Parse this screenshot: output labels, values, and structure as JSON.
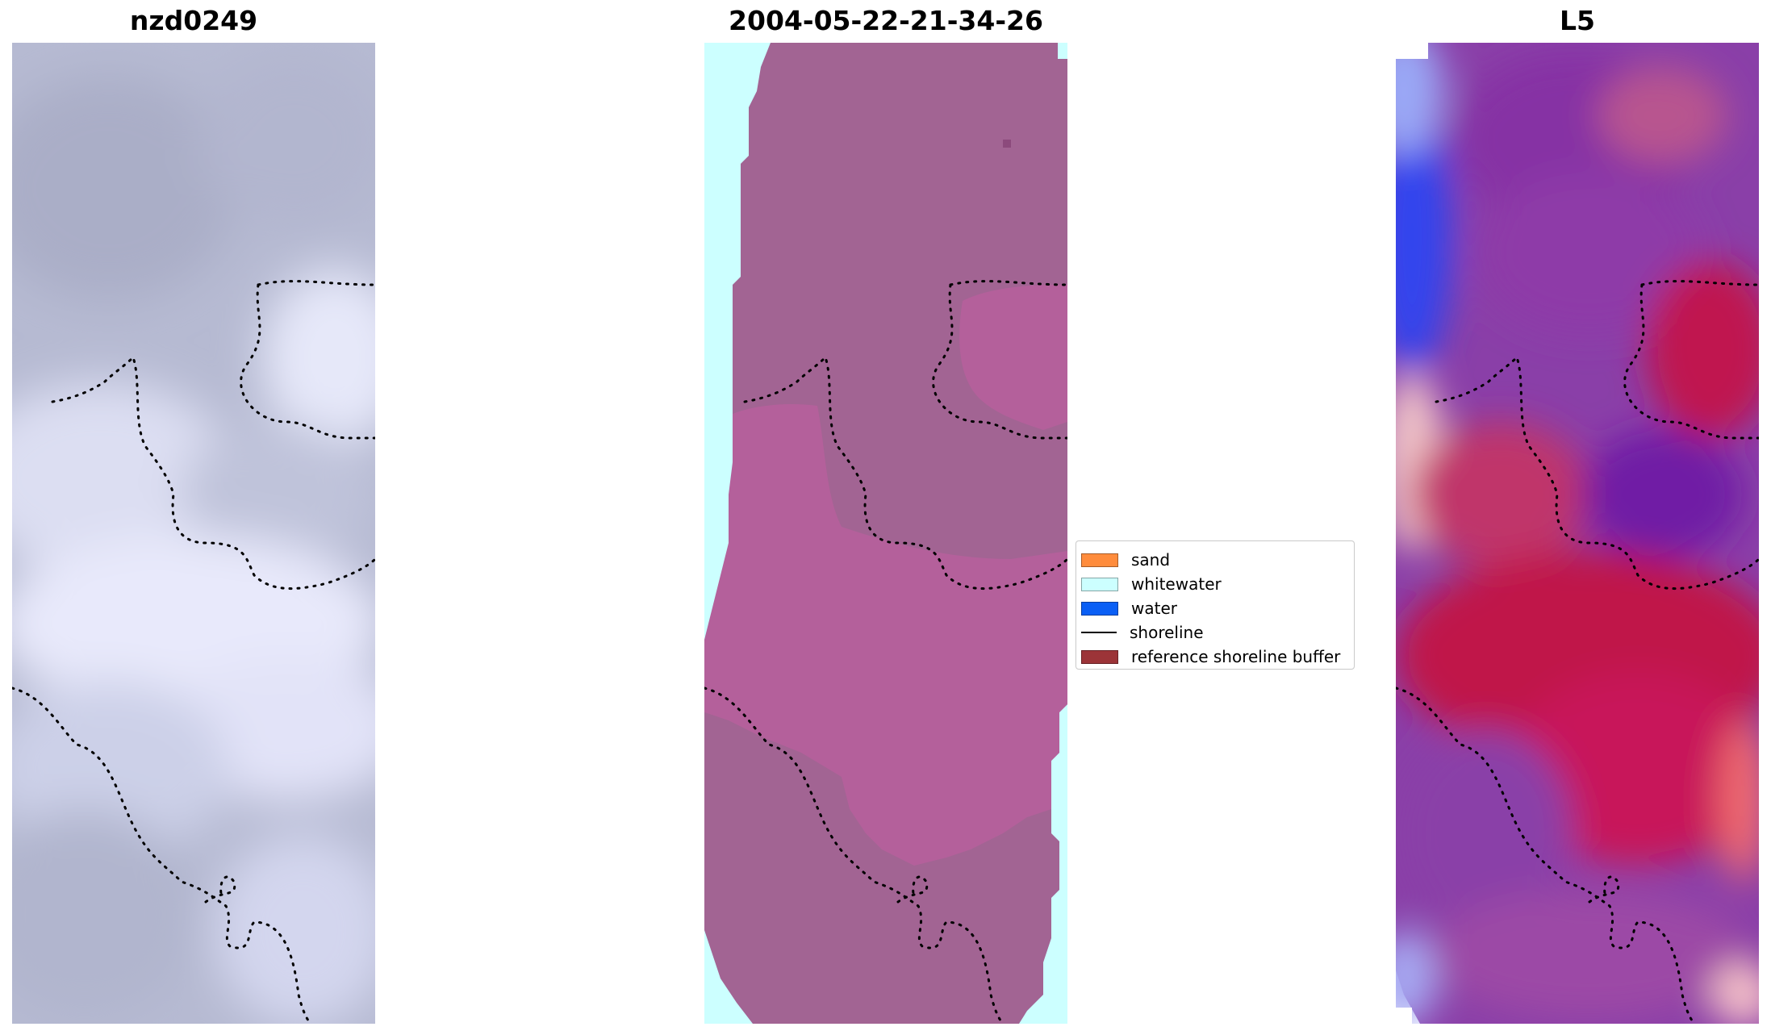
{
  "panels": [
    {
      "title": "nzd0249"
    },
    {
      "title": "2004-05-22-21-34-26"
    },
    {
      "title": "L5"
    }
  ],
  "legend": {
    "items": [
      {
        "label": "sand",
        "color": "#ff8c3c",
        "kind": "patch"
      },
      {
        "label": "whitewater",
        "color": "#ccffff",
        "kind": "patch"
      },
      {
        "label": "water",
        "color": "#0a5ff5",
        "kind": "patch"
      },
      {
        "label": "shoreline",
        "color": "#000000",
        "kind": "line"
      },
      {
        "label": "reference shoreline buffer",
        "color": "#9c3438",
        "kind": "patch"
      }
    ]
  }
}
